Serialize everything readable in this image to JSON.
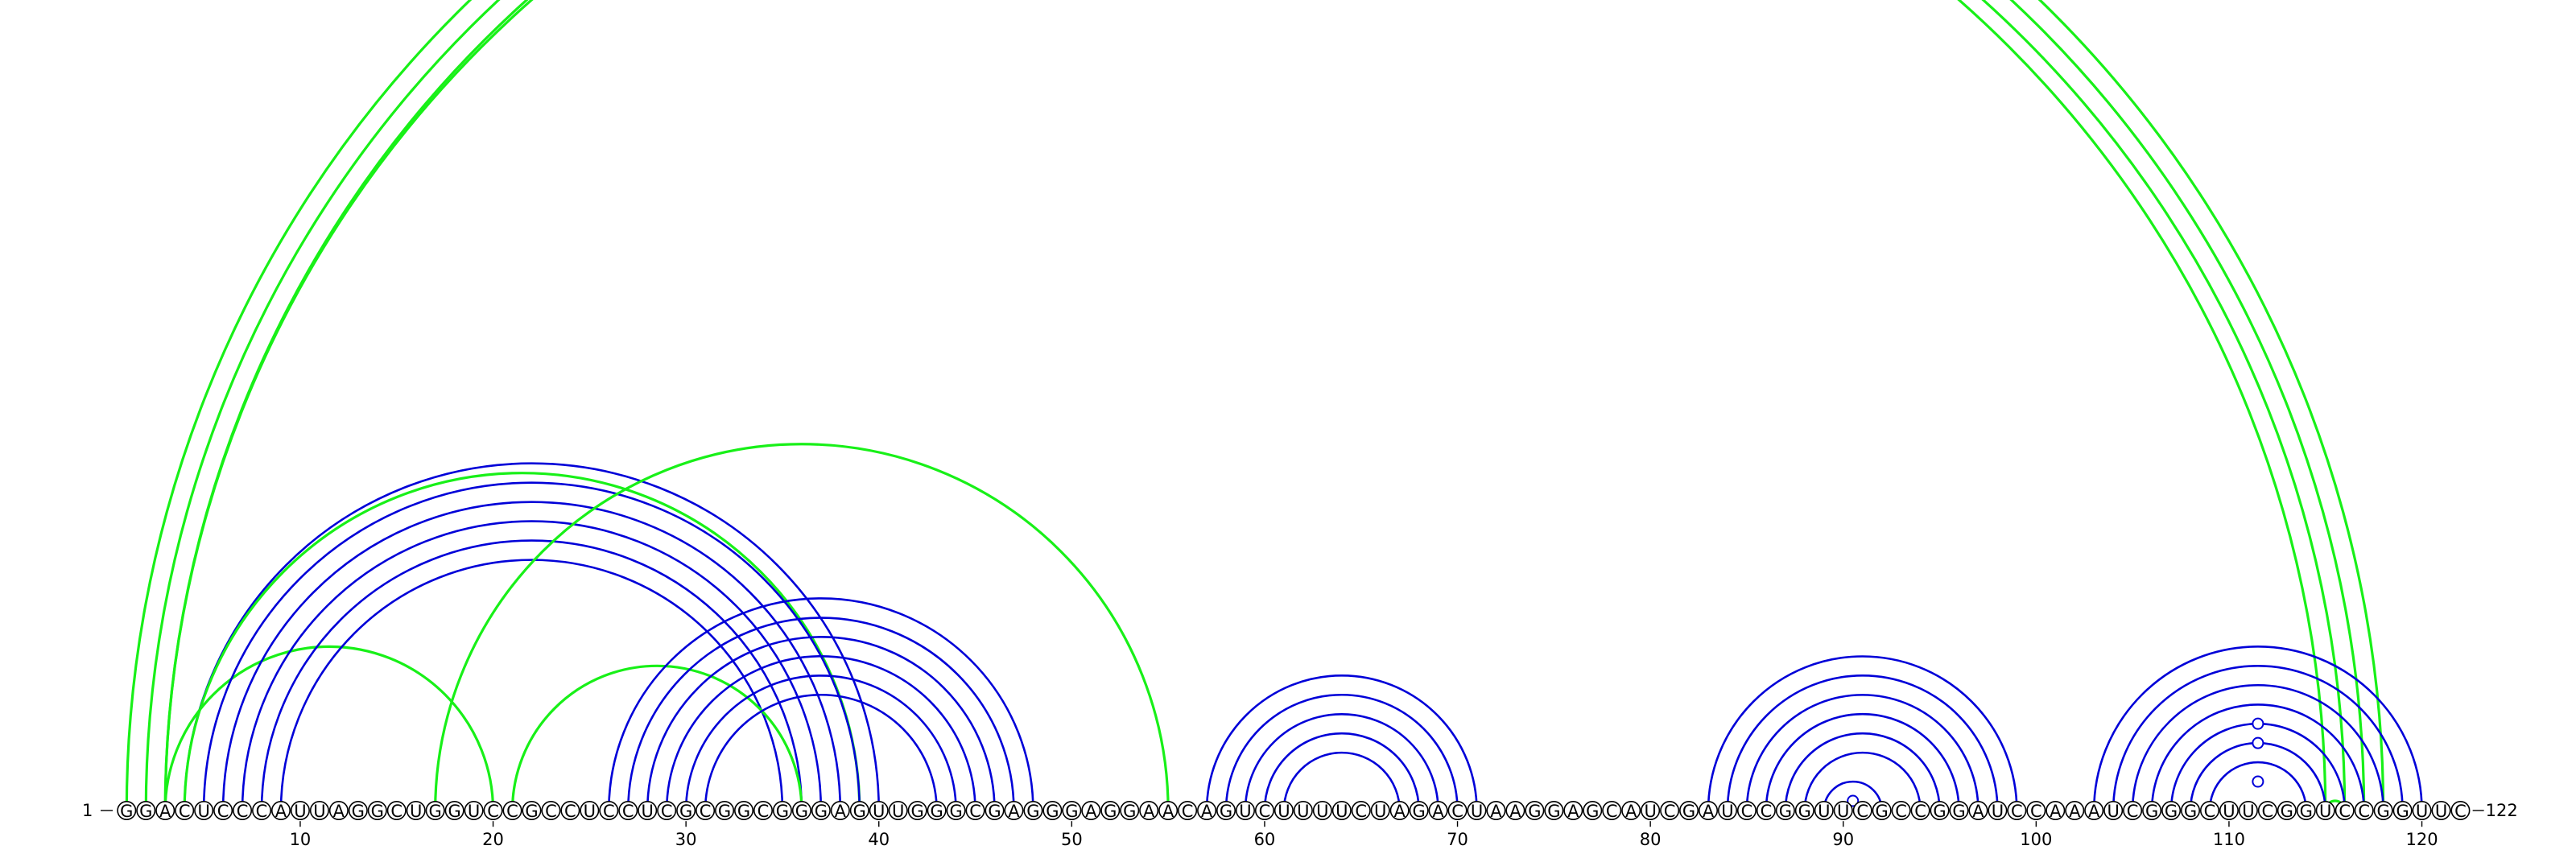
{
  "sequence": "GGACUCCCAUUAGGCUGGUCCGCCUCCUCGCGGCGGGAGUUGGGCGAGGGAGGAACAGUCUUUUCUAGACUAAGGAGCAUCGAUCCGGUUCGCCGGAUCCAAAUCGGGCUUCGGUCCGGUUC",
  "start_label": "1",
  "end_label": "122",
  "ticks": [
    10,
    20,
    30,
    40,
    50,
    60,
    70,
    80,
    90,
    100,
    110,
    120
  ],
  "colors": {
    "blue": "#0000d8",
    "green": "#18f018"
  },
  "helices": [
    {
      "color": "green",
      "i": 1,
      "j": 118,
      "n": 3
    },
    {
      "color": "green",
      "i": 3,
      "j": 115,
      "n": 1
    },
    {
      "color": "blue",
      "i": 4,
      "j": 40,
      "n": 1
    },
    {
      "color": "green",
      "i": 3,
      "j": 20,
      "n": 1
    },
    {
      "color": "green",
      "i": 4,
      "j": 39,
      "n": 1
    },
    {
      "color": "blue",
      "i": 5,
      "j": 39,
      "n": 5
    },
    {
      "color": "green",
      "i": 17,
      "j": 55,
      "n": 1
    },
    {
      "color": "green",
      "i": 21,
      "j": 36,
      "n": 1
    },
    {
      "color": "blue",
      "i": 26,
      "j": 48,
      "n": 6
    },
    {
      "color": "blue",
      "i": 57,
      "j": 71,
      "n": 5
    },
    {
      "color": "blue",
      "i": 83,
      "j": 99,
      "n": 6
    },
    {
      "color": "blue",
      "i": 89,
      "j": 92,
      "n": 1
    },
    {
      "color": "blue",
      "i": 103,
      "j": 120,
      "n": 7
    },
    {
      "color": "green",
      "i": 115,
      "j": 116,
      "n": 1
    }
  ],
  "markers": [
    {
      "color": "blue",
      "i": 90,
      "j": 91
    },
    {
      "color": "blue",
      "i": 110,
      "j": 113
    },
    {
      "color": "blue",
      "i": 108,
      "j": 115
    },
    {
      "color": "blue",
      "i": 107,
      "j": 116
    }
  ]
}
